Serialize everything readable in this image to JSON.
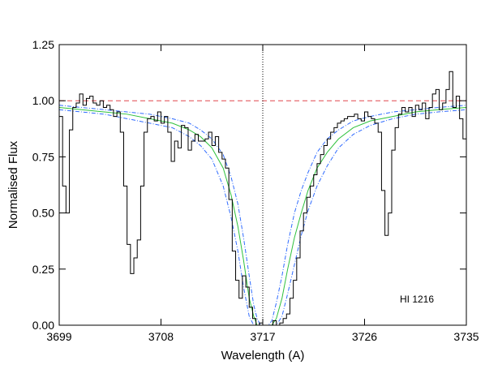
{
  "chart_data": {
    "type": "line",
    "xlabel": "Wavelength (A)",
    "ylabel": "Normalised Flux",
    "xlim": [
      3699,
      3735
    ],
    "ylim": [
      0.0,
      1.25
    ],
    "x_ticks": [
      3699,
      3708,
      3717,
      3726,
      3735
    ],
    "x_tick_labels": [
      "3699",
      "3708",
      "3717",
      "3726",
      "3735"
    ],
    "y_ticks": [
      0.0,
      0.25,
      0.5,
      0.75,
      1.0,
      1.25
    ],
    "y_tick_labels": [
      "0.00",
      "0.25",
      "0.50",
      "0.75",
      "1.00",
      "1.25"
    ],
    "grid": false,
    "annotation": "HI 1216",
    "reference_lines": {
      "continuum": {
        "y": 1.0,
        "color": "#e0474c",
        "style": "dashed"
      },
      "line_center": {
        "x": 3717.0,
        "color": "#000000",
        "style": "dotted"
      }
    },
    "series": [
      {
        "role": "observed-spectrum",
        "color": "#000000",
        "x": [
          3699.0,
          3699.3,
          3699.6,
          3699.9,
          3700.2,
          3700.5,
          3700.8,
          3701.1,
          3701.4,
          3701.7,
          3702.0,
          3702.3,
          3702.6,
          3702.9,
          3703.2,
          3703.5,
          3703.8,
          3704.1,
          3704.4,
          3704.7,
          3705.0,
          3705.3,
          3705.6,
          3705.9,
          3706.2,
          3706.5,
          3706.8,
          3707.1,
          3707.4,
          3707.7,
          3708.0,
          3708.3,
          3708.6,
          3708.9,
          3709.2,
          3709.5,
          3709.8,
          3710.1,
          3710.4,
          3710.7,
          3711.0,
          3711.3,
          3711.6,
          3711.9,
          3712.2,
          3712.5,
          3712.8,
          3713.1,
          3713.4,
          3713.7,
          3714.0,
          3714.3,
          3714.6,
          3714.9,
          3715.2,
          3715.5,
          3715.8,
          3716.1,
          3716.4,
          3716.7,
          3717.0,
          3717.3,
          3717.6,
          3717.9,
          3718.2,
          3718.5,
          3718.8,
          3719.1,
          3719.4,
          3719.7,
          3720.0,
          3720.3,
          3720.6,
          3720.9,
          3721.2,
          3721.5,
          3721.8,
          3722.1,
          3722.4,
          3722.7,
          3723.0,
          3723.3,
          3723.6,
          3723.9,
          3724.2,
          3724.5,
          3724.8,
          3725.1,
          3725.4,
          3725.7,
          3726.0,
          3726.3,
          3726.6,
          3726.9,
          3727.2,
          3727.5,
          3727.8,
          3728.1,
          3728.4,
          3728.7,
          3729.0,
          3729.3,
          3729.6,
          3729.9,
          3730.2,
          3730.5,
          3730.8,
          3731.1,
          3731.4,
          3731.7,
          3732.0,
          3732.3,
          3732.6,
          3732.9,
          3733.2,
          3733.5,
          3733.8,
          3734.1,
          3734.4,
          3734.7,
          3735.0
        ],
        "y": [
          0.93,
          0.62,
          0.5,
          0.87,
          0.97,
          0.99,
          1.03,
          0.98,
          1.01,
          1.02,
          0.99,
          0.98,
          1.0,
          0.97,
          0.98,
          0.96,
          0.93,
          0.95,
          0.86,
          0.62,
          0.36,
          0.23,
          0.3,
          0.38,
          0.62,
          0.86,
          0.92,
          0.93,
          0.91,
          0.95,
          0.9,
          0.93,
          0.86,
          0.73,
          0.82,
          0.79,
          0.89,
          0.88,
          0.78,
          0.82,
          0.85,
          0.82,
          0.82,
          0.83,
          0.86,
          0.8,
          0.84,
          0.77,
          0.74,
          0.7,
          0.56,
          0.33,
          0.2,
          0.12,
          0.22,
          0.17,
          0.08,
          0.03,
          0.0,
          0.01,
          0.0,
          0.0,
          0.0,
          0.02,
          0.0,
          0.01,
          0.03,
          0.05,
          0.12,
          0.2,
          0.3,
          0.42,
          0.5,
          0.57,
          0.62,
          0.67,
          0.72,
          0.76,
          0.8,
          0.83,
          0.86,
          0.88,
          0.9,
          0.91,
          0.92,
          0.93,
          0.93,
          0.94,
          0.92,
          0.91,
          0.95,
          0.93,
          0.92,
          0.9,
          0.86,
          0.6,
          0.4,
          0.5,
          0.78,
          0.88,
          0.94,
          0.97,
          0.95,
          0.97,
          0.93,
          0.98,
          0.96,
          0.99,
          0.92,
          0.97,
          1.03,
          1.05,
          0.96,
          0.99,
          1.05,
          1.13,
          0.97,
          1.02,
          0.92,
          0.83,
          0.8
        ]
      },
      {
        "role": "best-fit-profile",
        "color": "#2ec13c",
        "style": "solid",
        "x": [
          3699.0,
          3701.0,
          3703.0,
          3705.0,
          3707.0,
          3709.0,
          3710.5,
          3711.5,
          3712.5,
          3713.5,
          3714.2,
          3714.8,
          3715.3,
          3715.8,
          3716.2,
          3716.5,
          3716.8,
          3717.0,
          3717.2,
          3717.5,
          3717.8,
          3718.2,
          3718.7,
          3719.2,
          3719.8,
          3720.4,
          3721.0,
          3721.8,
          3722.7,
          3723.7,
          3725.0,
          3726.5,
          3728.5,
          3730.5,
          3732.5,
          3735.0
        ],
        "y": [
          0.97,
          0.96,
          0.95,
          0.94,
          0.92,
          0.9,
          0.87,
          0.84,
          0.79,
          0.7,
          0.58,
          0.44,
          0.29,
          0.12,
          0.04,
          0.0,
          0.0,
          0.0,
          0.0,
          0.0,
          0.0,
          0.03,
          0.12,
          0.25,
          0.39,
          0.5,
          0.6,
          0.7,
          0.77,
          0.83,
          0.88,
          0.91,
          0.93,
          0.95,
          0.96,
          0.97
        ]
      },
      {
        "role": "fit-lower-bound",
        "color": "#2f6bff",
        "style": "dash-dot",
        "x": [
          3699.0,
          3701.0,
          3703.0,
          3705.0,
          3707.0,
          3709.0,
          3710.5,
          3711.5,
          3712.5,
          3713.5,
          3714.2,
          3714.8,
          3715.3,
          3715.8,
          3716.2,
          3716.5,
          3716.8,
          3717.0,
          3717.2,
          3717.5,
          3717.8,
          3718.2,
          3718.7,
          3719.2,
          3719.8,
          3720.4,
          3721.0,
          3721.8,
          3722.7,
          3723.7,
          3725.0,
          3726.5,
          3728.5,
          3730.5,
          3732.5,
          3735.0
        ],
        "y": [
          0.96,
          0.95,
          0.94,
          0.92,
          0.9,
          0.88,
          0.84,
          0.8,
          0.74,
          0.62,
          0.48,
          0.33,
          0.17,
          0.04,
          0.0,
          0.0,
          0.0,
          0.0,
          0.0,
          0.0,
          0.0,
          0.0,
          0.04,
          0.14,
          0.27,
          0.4,
          0.51,
          0.62,
          0.71,
          0.79,
          0.85,
          0.89,
          0.92,
          0.94,
          0.95,
          0.96
        ]
      },
      {
        "role": "fit-upper-bound",
        "color": "#2f6bff",
        "style": "dash-dot",
        "x": [
          3699.0,
          3701.0,
          3703.0,
          3705.0,
          3707.0,
          3709.0,
          3710.5,
          3711.5,
          3712.5,
          3713.5,
          3714.2,
          3714.8,
          3715.3,
          3715.8,
          3716.2,
          3716.5,
          3716.8,
          3717.0,
          3717.2,
          3717.5,
          3717.8,
          3718.2,
          3718.7,
          3719.2,
          3719.8,
          3720.4,
          3721.0,
          3721.8,
          3722.7,
          3723.7,
          3725.0,
          3726.5,
          3728.5,
          3730.5,
          3732.5,
          3735.0
        ],
        "y": [
          0.98,
          0.97,
          0.96,
          0.95,
          0.94,
          0.92,
          0.9,
          0.87,
          0.83,
          0.76,
          0.66,
          0.54,
          0.39,
          0.22,
          0.09,
          0.03,
          0.0,
          0.0,
          0.0,
          0.0,
          0.02,
          0.1,
          0.22,
          0.36,
          0.5,
          0.6,
          0.68,
          0.77,
          0.83,
          0.87,
          0.91,
          0.93,
          0.95,
          0.96,
          0.97,
          0.98
        ]
      }
    ]
  }
}
